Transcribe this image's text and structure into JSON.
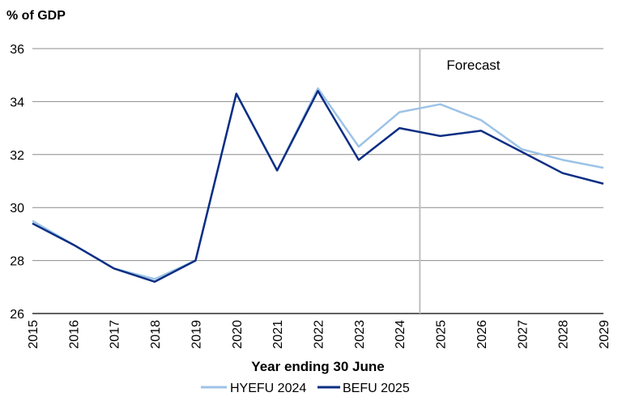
{
  "chart_data": {
    "type": "line",
    "ylabel": "% of GDP",
    "xlabel": "Year ending 30 June",
    "ylim": [
      26,
      36
    ],
    "yticks": [
      26,
      28,
      30,
      32,
      34,
      36
    ],
    "categories": [
      "2015",
      "2016",
      "2017",
      "2018",
      "2019",
      "2020",
      "2021",
      "2022",
      "2023",
      "2024",
      "2025",
      "2026",
      "2027",
      "2028",
      "2029"
    ],
    "annotation": {
      "text": "Forecast"
    },
    "grid": true,
    "legend_position": "bottom",
    "series": [
      {
        "name": "HYEFU 2024",
        "color": "#9dc3e6",
        "values": [
          29.5,
          28.6,
          27.7,
          27.3,
          28.0,
          34.3,
          31.4,
          34.5,
          32.3,
          33.6,
          33.9,
          33.3,
          32.2,
          31.8,
          31.5
        ]
      },
      {
        "name": "BEFU 2025",
        "color": "#0b2e83",
        "values": [
          29.4,
          28.6,
          27.7,
          27.2,
          28.0,
          34.3,
          31.4,
          34.4,
          31.8,
          33.0,
          32.7,
          32.9,
          32.1,
          31.3,
          30.9
        ]
      }
    ]
  }
}
